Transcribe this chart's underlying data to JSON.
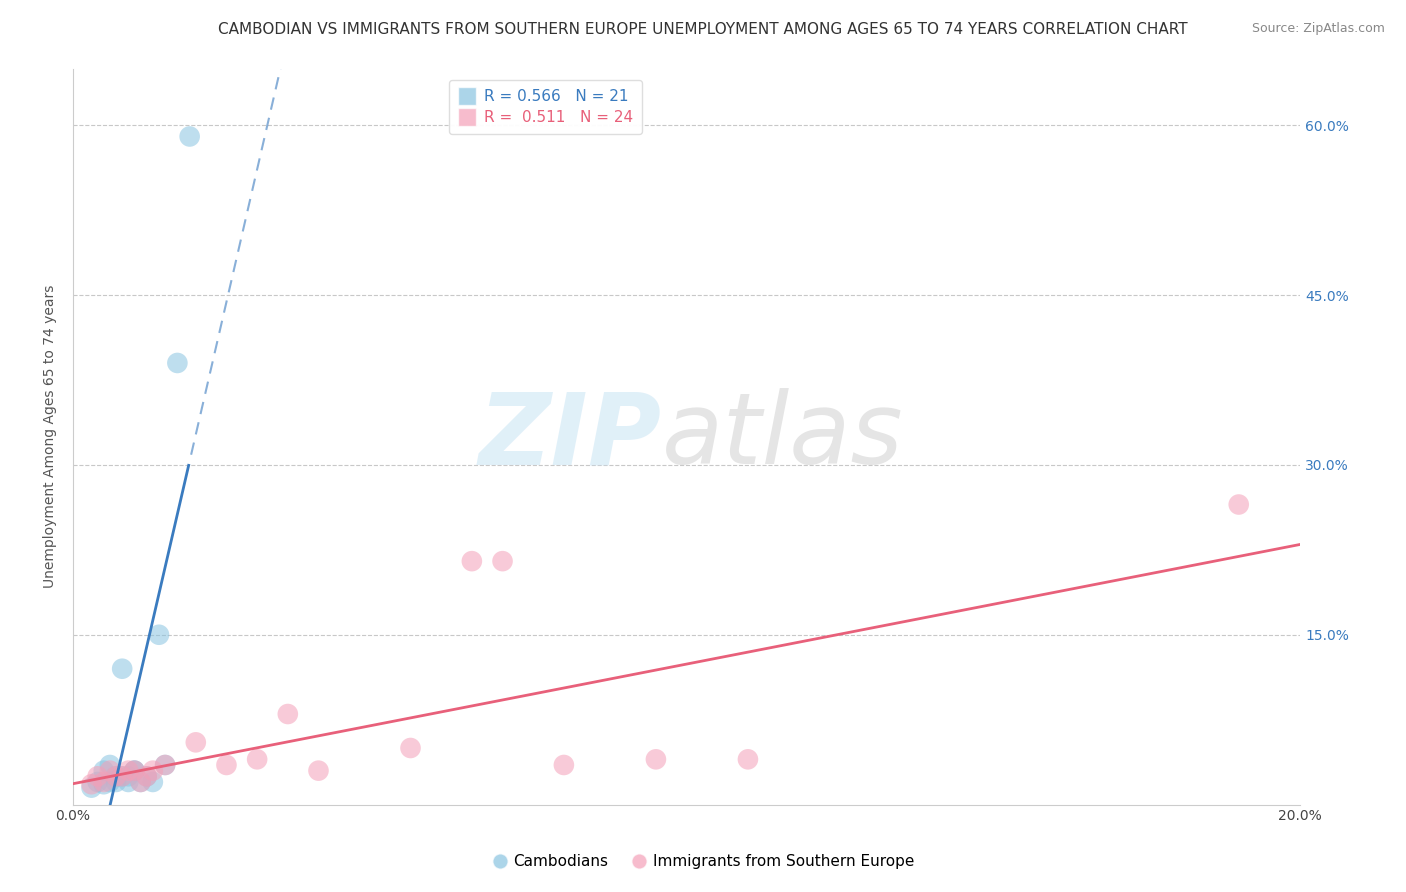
{
  "title": "CAMBODIAN VS IMMIGRANTS FROM SOUTHERN EUROPE UNEMPLOYMENT AMONG AGES 65 TO 74 YEARS CORRELATION CHART",
  "source": "Source: ZipAtlas.com",
  "ylabel": "Unemployment Among Ages 65 to 74 years",
  "xlim": [
    0.0,
    0.2
  ],
  "ylim": [
    0.0,
    0.65
  ],
  "xticks": [
    0.0,
    0.05,
    0.1,
    0.15,
    0.2
  ],
  "yticks": [
    0.0,
    0.15,
    0.3,
    0.45,
    0.6
  ],
  "right_yticklabels": [
    "",
    "15.0%",
    "30.0%",
    "45.0%",
    "60.0%"
  ],
  "background_color": "#ffffff",
  "grid_color": "#c8c8c8",
  "cambodian_color": "#89c4e1",
  "southern_europe_color": "#f4a0b8",
  "cambodian_line_color": "#3a7bbf",
  "southern_europe_line_color": "#e8607a",
  "cambodian_R": 0.566,
  "cambodian_N": 21,
  "southern_europe_R": 0.511,
  "southern_europe_N": 24,
  "legend_labels": [
    "Cambodians",
    "Immigrants from Southern Europe"
  ],
  "cambodian_scatter_x": [
    0.003,
    0.004,
    0.005,
    0.005,
    0.006,
    0.006,
    0.007,
    0.007,
    0.008,
    0.008,
    0.009,
    0.009,
    0.01,
    0.01,
    0.011,
    0.012,
    0.013,
    0.014,
    0.015,
    0.017,
    0.019
  ],
  "cambodian_scatter_y": [
    0.015,
    0.02,
    0.018,
    0.03,
    0.02,
    0.035,
    0.02,
    0.025,
    0.025,
    0.12,
    0.02,
    0.025,
    0.03,
    0.03,
    0.02,
    0.025,
    0.02,
    0.15,
    0.035,
    0.39,
    0.59
  ],
  "southern_europe_scatter_x": [
    0.003,
    0.004,
    0.005,
    0.006,
    0.007,
    0.008,
    0.009,
    0.01,
    0.011,
    0.012,
    0.013,
    0.015,
    0.02,
    0.025,
    0.03,
    0.035,
    0.04,
    0.055,
    0.065,
    0.07,
    0.08,
    0.095,
    0.11,
    0.19
  ],
  "southern_europe_scatter_y": [
    0.018,
    0.025,
    0.02,
    0.03,
    0.025,
    0.025,
    0.03,
    0.03,
    0.02,
    0.025,
    0.03,
    0.035,
    0.055,
    0.035,
    0.04,
    0.08,
    0.03,
    0.05,
    0.215,
    0.215,
    0.035,
    0.04,
    0.04,
    0.265
  ],
  "title_fontsize": 11,
  "source_fontsize": 9,
  "ylabel_fontsize": 10,
  "tick_fontsize": 10,
  "legend_fontsize": 11
}
